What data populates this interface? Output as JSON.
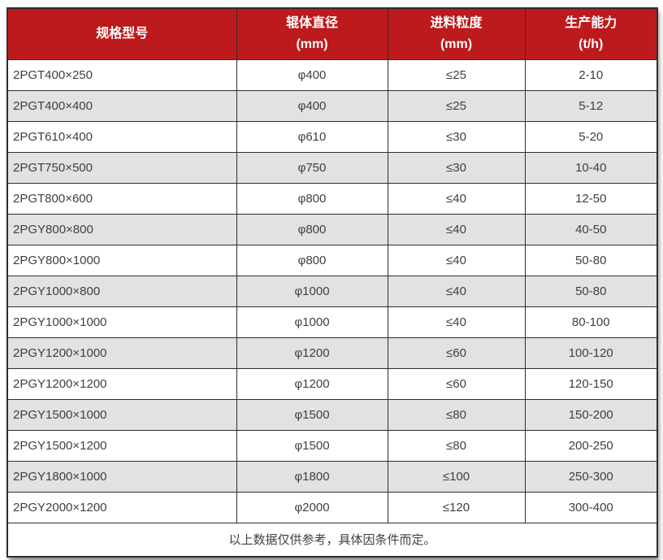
{
  "table": {
    "columns": [
      {
        "key": "model",
        "label_lines": [
          "规格型号"
        ]
      },
      {
        "key": "diameter",
        "label_lines": [
          "辊体直径",
          "(mm)"
        ]
      },
      {
        "key": "feed",
        "label_lines": [
          "进料粒度",
          "(mm)"
        ]
      },
      {
        "key": "capacity",
        "label_lines": [
          "生产能力",
          "(t/h)"
        ]
      }
    ],
    "rows": [
      [
        "2PGT400×250",
        "φ400",
        "≤25",
        "2-10"
      ],
      [
        "2PGT400×400",
        "φ400",
        "≤25",
        "5-12"
      ],
      [
        "2PGT610×400",
        "φ610",
        "≤30",
        "5-20"
      ],
      [
        "2PGT750×500",
        "φ750",
        "≤30",
        "10-40"
      ],
      [
        "2PGT800×600",
        "φ800",
        "≤40",
        "12-50"
      ],
      [
        "2PGY800×800",
        "φ800",
        "≤40",
        "40-50"
      ],
      [
        "2PGY800×1000",
        "φ800",
        "≤40",
        "50-80"
      ],
      [
        "2PGY1000×800",
        "φ1000",
        "≤40",
        "50-80"
      ],
      [
        "2PGY1000×1000",
        "φ1000",
        "≤40",
        "80-100"
      ],
      [
        "2PGY1200×1000",
        "φ1200",
        "≤60",
        "100-120"
      ],
      [
        "2PGY1200×1200",
        "φ1200",
        "≤60",
        "120-150"
      ],
      [
        "2PGY1500×1000",
        "φ1500",
        "≤80",
        "150-200"
      ],
      [
        "2PGY1500×1200",
        "φ1500",
        "≤80",
        "200-250"
      ],
      [
        "2PGY1800×1000",
        "φ1800",
        "≤100",
        "250-300"
      ],
      [
        "2PGY2000×1200",
        "φ2000",
        "≤120",
        "300-400"
      ]
    ],
    "footer_note": "以上数据仅供参考，具体因条件而定。",
    "colors": {
      "header_bg": "#bd1a1d",
      "header_text": "#ffffff",
      "row_bg": "#ffffff",
      "row_alt_bg": "#e2e2e2",
      "border": "#2e2e2e",
      "text": "#3f3f3f"
    }
  }
}
